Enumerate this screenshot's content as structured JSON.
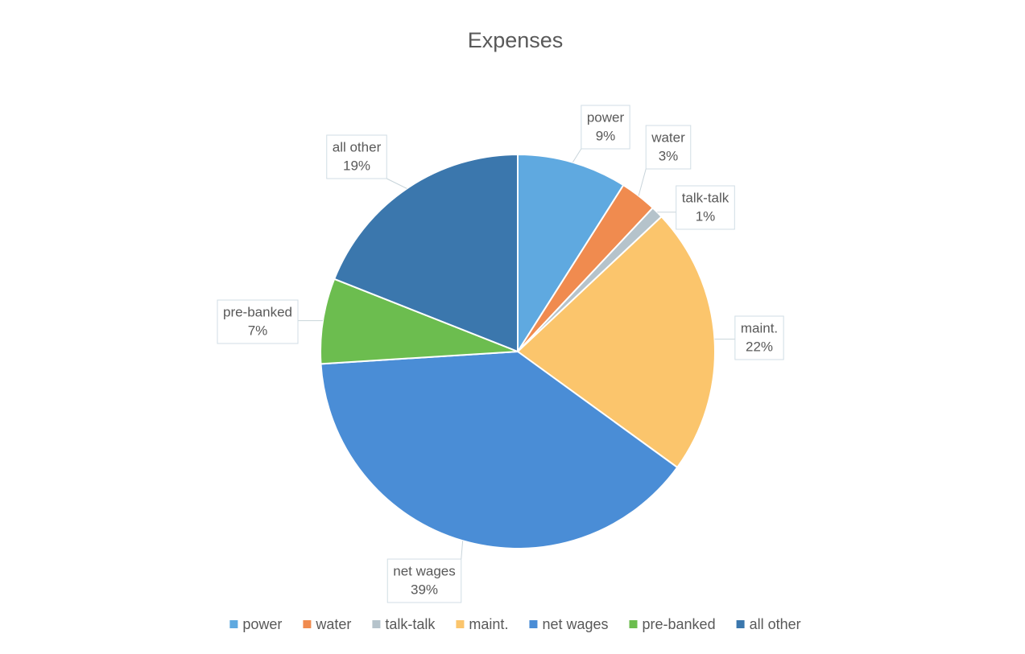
{
  "chart_data": {
    "type": "pie",
    "title": "Expenses",
    "categories": [
      "power",
      "water",
      "talk-talk",
      "maint.",
      "net wages",
      "pre-banked",
      "all other"
    ],
    "values": [
      9,
      3,
      1,
      22,
      39,
      7,
      19
    ],
    "value_labels": [
      "9%",
      "3%",
      "1%",
      "22%",
      "39%",
      "7%",
      "19%"
    ],
    "colors": [
      "#5fa9e0",
      "#f08b4f",
      "#b5c3cb",
      "#fbc56c",
      "#4a8dd6",
      "#6cbd4f",
      "#3b77ad"
    ],
    "legend": "bottom"
  }
}
